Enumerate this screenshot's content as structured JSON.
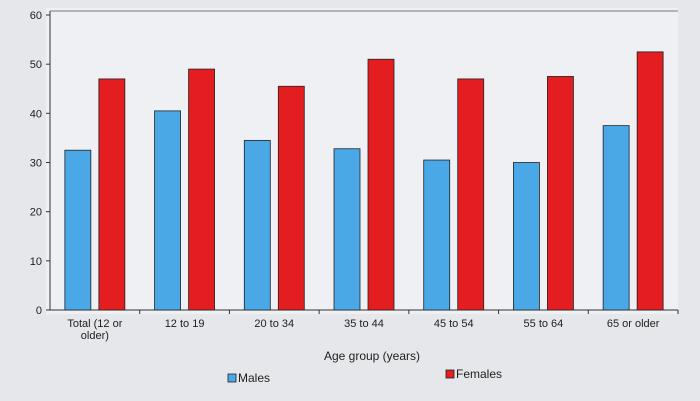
{
  "chart_data": {
    "type": "bar",
    "title": "",
    "xlabel": "Age group (years)",
    "ylabel": "",
    "ylim": [
      0,
      60
    ],
    "yticks": [
      0,
      10,
      20,
      30,
      40,
      50,
      60
    ],
    "grid": false,
    "legend_position": "bottom",
    "categories": [
      [
        "Total (12 or",
        "older)"
      ],
      [
        "12 to 19"
      ],
      [
        "20 to 34"
      ],
      [
        "35 to 44"
      ],
      [
        "45 to 54"
      ],
      [
        "55 to 64"
      ],
      [
        "65 or older"
      ]
    ],
    "series": [
      {
        "name": "Males",
        "color": "#4aa8e6",
        "values": [
          32.5,
          40.5,
          34.5,
          32.8,
          30.5,
          30.0,
          37.5
        ]
      },
      {
        "name": "Females",
        "color": "#e41e20",
        "values": [
          47.0,
          49.0,
          45.5,
          51.0,
          47.0,
          47.5,
          52.5
        ]
      }
    ]
  }
}
